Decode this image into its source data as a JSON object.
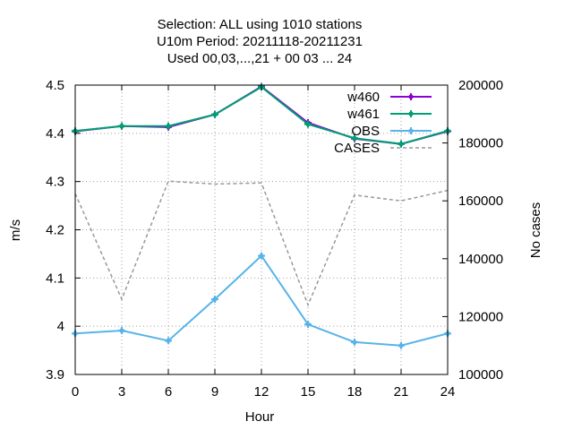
{
  "chart_data": {
    "type": "line",
    "title_lines": [
      "Selection: ALL using  1010 stations",
      "U10m   Period: 20211118-20211231",
      "Used  00,03,...,21  + 00 03 ... 24"
    ],
    "xlabel": "Hour",
    "ylabel": "m/s",
    "y2label": "No cases",
    "x": [
      0,
      3,
      6,
      9,
      12,
      15,
      18,
      21,
      24
    ],
    "xlim": [
      0,
      24
    ],
    "ylim": [
      3.9,
      4.5
    ],
    "y2lim": [
      100000,
      200000
    ],
    "xticks": [
      0,
      3,
      6,
      9,
      12,
      15,
      18,
      21,
      24
    ],
    "yticks": [
      3.9,
      4,
      4.1,
      4.2,
      4.3,
      4.4,
      4.5
    ],
    "ytick_labels": [
      "3.9",
      "4",
      "4.1",
      "4.2",
      "4.3",
      "4.4",
      "4.5"
    ],
    "y2ticks": [
      100000,
      120000,
      140000,
      160000,
      180000,
      200000
    ],
    "grid": true,
    "legend_position": "top-right",
    "series": [
      {
        "name": "w460",
        "axis": "y",
        "color": "#8b00d4",
        "dash": false,
        "marker": true,
        "values": [
          4.404,
          4.415,
          4.413,
          4.439,
          4.497,
          4.422,
          4.389,
          4.378,
          4.404
        ]
      },
      {
        "name": "w461",
        "axis": "y",
        "color": "#009e73",
        "dash": false,
        "marker": true,
        "values": [
          4.405,
          4.415,
          4.415,
          4.439,
          4.496,
          4.419,
          4.39,
          4.378,
          4.405
        ]
      },
      {
        "name": "OBS",
        "axis": "y",
        "color": "#56b4e9",
        "dash": false,
        "marker": true,
        "values": [
          3.985,
          3.991,
          3.97,
          4.056,
          4.146,
          4.004,
          3.967,
          3.96,
          3.985
        ]
      },
      {
        "name": "CASES",
        "axis": "y2",
        "color": "#999999",
        "dash": true,
        "marker": false,
        "values": [
          162500,
          126000,
          166800,
          165800,
          166200,
          124000,
          162000,
          160000,
          163600
        ]
      }
    ]
  }
}
